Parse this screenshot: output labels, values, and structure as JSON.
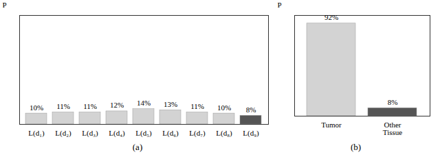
{
  "chart_data": [
    {
      "type": "bar",
      "subtitle": "(a)",
      "ylabel": "P",
      "categories": [
        "L(d₁)",
        "L(d₂)",
        "L(d₃)",
        "L(d₄)",
        "L(d₅)",
        "L(d₆)",
        "L(d₇)",
        "L(d₈)",
        "L(d₉)"
      ],
      "values": [
        10,
        11,
        11,
        12,
        14,
        13,
        11,
        10,
        8
      ],
      "value_labels": [
        "10%",
        "11%",
        "11%",
        "12%",
        "14%",
        "13%",
        "11%",
        "10%",
        "8%"
      ],
      "colors": [
        "#d3d3d3",
        "#d3d3d3",
        "#d3d3d3",
        "#d3d3d3",
        "#d3d3d3",
        "#d3d3d3",
        "#d3d3d3",
        "#d3d3d3",
        "#555555"
      ],
      "ylim": [
        0,
        100
      ],
      "data_labels": true,
      "tick_labels": "x"
    },
    {
      "type": "bar",
      "subtitle": "(b)",
      "ylabel": "P",
      "categories": [
        "Tumor",
        "Other\nTissue"
      ],
      "values": [
        92,
        8
      ],
      "value_labels": [
        "92%",
        "8%"
      ],
      "colors": [
        "#d3d3d3",
        "#555555"
      ],
      "ylim": [
        0,
        100
      ],
      "data_labels": true,
      "tick_labels": "x"
    }
  ]
}
